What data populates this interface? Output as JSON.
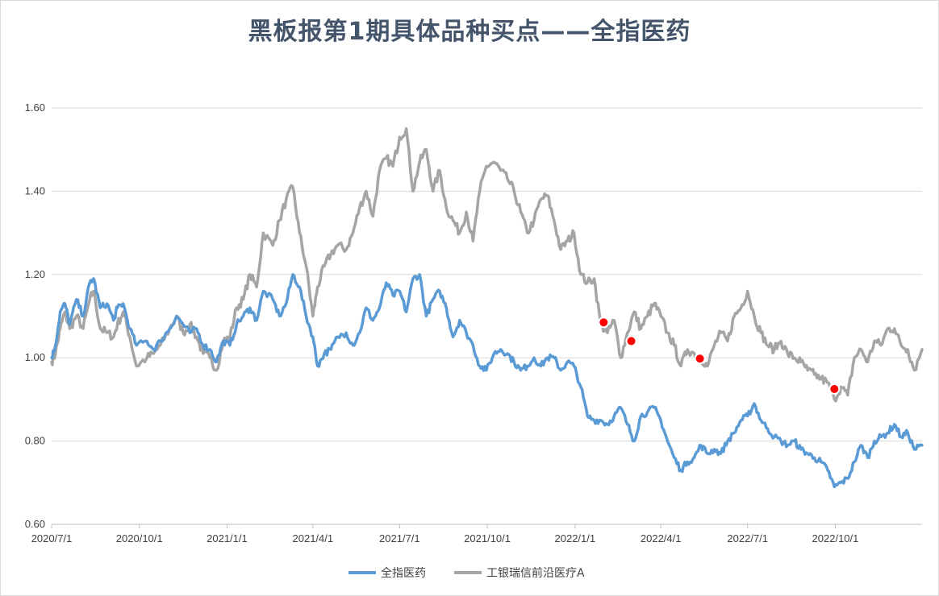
{
  "chart_data": {
    "type": "line",
    "title": "黑板报第1期具体品种买点——全指医药",
    "xlabel": "",
    "ylabel": "",
    "ylim": [
      0.6,
      1.6
    ],
    "yticks": [
      "0.60",
      "0.80",
      "1.00",
      "1.20",
      "1.40",
      "1.60"
    ],
    "xticks": [
      "2020/7/1",
      "2020/10/1",
      "2021/1/1",
      "2021/4/1",
      "2021/7/1",
      "2021/10/1",
      "2022/1/1",
      "2022/4/1",
      "2022/7/1",
      "2022/10/1"
    ],
    "xrange": [
      "2020-07-01",
      "2022-12-31"
    ],
    "grid": true,
    "legend_position": "bottom",
    "colors": {
      "series0": "#5b9bd5",
      "series1": "#a5a5a5",
      "markers": "#ff0000",
      "grid": "#d9d9d9",
      "title": "#44546a"
    },
    "series": [
      {
        "name": "全指医药",
        "points": [
          [
            "2020-07-01",
            1.0
          ],
          [
            "2020-07-05",
            1.03
          ],
          [
            "2020-07-10",
            1.11
          ],
          [
            "2020-07-15",
            1.13
          ],
          [
            "2020-07-20",
            1.08
          ],
          [
            "2020-07-27",
            1.14
          ],
          [
            "2020-08-03",
            1.1
          ],
          [
            "2020-08-10",
            1.18
          ],
          [
            "2020-08-14",
            1.19
          ],
          [
            "2020-08-21",
            1.12
          ],
          [
            "2020-08-28",
            1.13
          ],
          [
            "2020-09-04",
            1.09
          ],
          [
            "2020-09-08",
            1.12
          ],
          [
            "2020-09-14",
            1.13
          ],
          [
            "2020-09-21",
            1.07
          ],
          [
            "2020-09-28",
            1.03
          ],
          [
            "2020-10-09",
            1.04
          ],
          [
            "2020-10-16",
            1.02
          ],
          [
            "2020-10-23",
            1.04
          ],
          [
            "2020-11-02",
            1.07
          ],
          [
            "2020-11-09",
            1.1
          ],
          [
            "2020-11-16",
            1.08
          ],
          [
            "2020-11-23",
            1.06
          ],
          [
            "2020-11-30",
            1.07
          ],
          [
            "2020-12-07",
            1.03
          ],
          [
            "2020-12-14",
            1.02
          ],
          [
            "2020-12-21",
            0.99
          ],
          [
            "2020-12-28",
            1.04
          ],
          [
            "2021-01-04",
            1.03
          ],
          [
            "2021-01-11",
            1.08
          ],
          [
            "2021-01-18",
            1.1
          ],
          [
            "2021-01-25",
            1.12
          ],
          [
            "2021-02-01",
            1.09
          ],
          [
            "2021-02-08",
            1.16
          ],
          [
            "2021-02-18",
            1.14
          ],
          [
            "2021-02-25",
            1.1
          ],
          [
            "2021-03-04",
            1.13
          ],
          [
            "2021-03-11",
            1.2
          ],
          [
            "2021-03-18",
            1.17
          ],
          [
            "2021-03-25",
            1.1
          ],
          [
            "2021-04-01",
            1.05
          ],
          [
            "2021-04-06",
            0.98
          ],
          [
            "2021-04-13",
            1.01
          ],
          [
            "2021-04-20",
            1.02
          ],
          [
            "2021-04-27",
            1.05
          ],
          [
            "2021-05-06",
            1.06
          ],
          [
            "2021-05-13",
            1.03
          ],
          [
            "2021-05-20",
            1.06
          ],
          [
            "2021-05-27",
            1.12
          ],
          [
            "2021-06-03",
            1.09
          ],
          [
            "2021-06-10",
            1.12
          ],
          [
            "2021-06-17",
            1.18
          ],
          [
            "2021-06-24",
            1.15
          ],
          [
            "2021-07-01",
            1.16
          ],
          [
            "2021-07-08",
            1.11
          ],
          [
            "2021-07-15",
            1.19
          ],
          [
            "2021-07-22",
            1.2
          ],
          [
            "2021-07-29",
            1.1
          ],
          [
            "2021-08-05",
            1.14
          ],
          [
            "2021-08-12",
            1.16
          ],
          [
            "2021-08-19",
            1.12
          ],
          [
            "2021-08-26",
            1.05
          ],
          [
            "2021-09-02",
            1.09
          ],
          [
            "2021-09-09",
            1.06
          ],
          [
            "2021-09-16",
            1.03
          ],
          [
            "2021-09-23",
            0.98
          ],
          [
            "2021-09-30",
            0.97
          ],
          [
            "2021-10-08",
            1.01
          ],
          [
            "2021-10-15",
            1.02
          ],
          [
            "2021-10-22",
            1.01
          ],
          [
            "2021-10-29",
            0.99
          ],
          [
            "2021-11-05",
            0.97
          ],
          [
            "2021-11-12",
            0.98
          ],
          [
            "2021-11-19",
            1.0
          ],
          [
            "2021-11-26",
            0.98
          ],
          [
            "2021-12-03",
            1.0
          ],
          [
            "2021-12-10",
            1.0
          ],
          [
            "2021-12-17",
            0.97
          ],
          [
            "2021-12-24",
            0.99
          ],
          [
            "2021-12-31",
            0.98
          ],
          [
            "2022-01-07",
            0.93
          ],
          [
            "2022-01-14",
            0.86
          ],
          [
            "2022-01-21",
            0.85
          ],
          [
            "2022-01-28",
            0.85
          ],
          [
            "2022-02-04",
            0.84
          ],
          [
            "2022-02-11",
            0.86
          ],
          [
            "2022-02-18",
            0.88
          ],
          [
            "2022-02-25",
            0.84
          ],
          [
            "2022-03-04",
            0.8
          ],
          [
            "2022-03-11",
            0.86
          ],
          [
            "2022-03-18",
            0.87
          ],
          [
            "2022-03-25",
            0.88
          ],
          [
            "2022-04-01",
            0.85
          ],
          [
            "2022-04-08",
            0.8
          ],
          [
            "2022-04-15",
            0.76
          ],
          [
            "2022-04-22",
            0.73
          ],
          [
            "2022-04-29",
            0.75
          ],
          [
            "2022-05-06",
            0.76
          ],
          [
            "2022-05-13",
            0.79
          ],
          [
            "2022-05-20",
            0.77
          ],
          [
            "2022-05-27",
            0.78
          ],
          [
            "2022-06-03",
            0.77
          ],
          [
            "2022-06-10",
            0.8
          ],
          [
            "2022-06-17",
            0.82
          ],
          [
            "2022-06-24",
            0.85
          ],
          [
            "2022-07-01",
            0.86
          ],
          [
            "2022-07-08",
            0.89
          ],
          [
            "2022-07-15",
            0.85
          ],
          [
            "2022-07-22",
            0.83
          ],
          [
            "2022-07-29",
            0.81
          ],
          [
            "2022-08-05",
            0.8
          ],
          [
            "2022-08-12",
            0.79
          ],
          [
            "2022-08-19",
            0.8
          ],
          [
            "2022-08-26",
            0.78
          ],
          [
            "2022-09-02",
            0.77
          ],
          [
            "2022-09-09",
            0.76
          ],
          [
            "2022-09-16",
            0.75
          ],
          [
            "2022-09-23",
            0.73
          ],
          [
            "2022-09-30",
            0.69
          ],
          [
            "2022-10-07",
            0.7
          ],
          [
            "2022-10-14",
            0.71
          ],
          [
            "2022-10-21",
            0.75
          ],
          [
            "2022-10-28",
            0.79
          ],
          [
            "2022-11-04",
            0.76
          ],
          [
            "2022-11-11",
            0.8
          ],
          [
            "2022-11-18",
            0.81
          ],
          [
            "2022-11-25",
            0.82
          ],
          [
            "2022-12-02",
            0.84
          ],
          [
            "2022-12-09",
            0.81
          ],
          [
            "2022-12-16",
            0.82
          ],
          [
            "2022-12-23",
            0.78
          ],
          [
            "2022-12-31",
            0.79
          ]
        ]
      },
      {
        "name": "工银瑞信前沿医疗A",
        "points": [
          [
            "2020-07-01",
            0.99
          ],
          [
            "2020-07-05",
            1.01
          ],
          [
            "2020-07-10",
            1.07
          ],
          [
            "2020-07-15",
            1.11
          ],
          [
            "2020-07-20",
            1.07
          ],
          [
            "2020-07-27",
            1.1
          ],
          [
            "2020-08-03",
            1.07
          ],
          [
            "2020-08-10",
            1.14
          ],
          [
            "2020-08-14",
            1.16
          ],
          [
            "2020-08-21",
            1.07
          ],
          [
            "2020-08-28",
            1.06
          ],
          [
            "2020-09-04",
            1.05
          ],
          [
            "2020-09-08",
            1.08
          ],
          [
            "2020-09-14",
            1.11
          ],
          [
            "2020-09-21",
            1.05
          ],
          [
            "2020-09-28",
            0.98
          ],
          [
            "2020-10-09",
            1.0
          ],
          [
            "2020-10-16",
            1.01
          ],
          [
            "2020-10-23",
            1.03
          ],
          [
            "2020-11-02",
            1.07
          ],
          [
            "2020-11-09",
            1.1
          ],
          [
            "2020-11-16",
            1.06
          ],
          [
            "2020-11-23",
            1.08
          ],
          [
            "2020-11-30",
            1.05
          ],
          [
            "2020-12-07",
            1.01
          ],
          [
            "2020-12-14",
            1.0
          ],
          [
            "2020-12-21",
            0.97
          ],
          [
            "2020-12-28",
            1.04
          ],
          [
            "2021-01-04",
            1.05
          ],
          [
            "2021-01-11",
            1.12
          ],
          [
            "2021-01-18",
            1.14
          ],
          [
            "2021-01-25",
            1.2
          ],
          [
            "2021-02-01",
            1.17
          ],
          [
            "2021-02-08",
            1.3
          ],
          [
            "2021-02-18",
            1.27
          ],
          [
            "2021-02-25",
            1.33
          ],
          [
            "2021-03-04",
            1.38
          ],
          [
            "2021-03-11",
            1.41
          ],
          [
            "2021-03-18",
            1.3
          ],
          [
            "2021-03-25",
            1.22
          ],
          [
            "2021-04-01",
            1.1
          ],
          [
            "2021-04-06",
            1.17
          ],
          [
            "2021-04-13",
            1.22
          ],
          [
            "2021-04-20",
            1.25
          ],
          [
            "2021-04-27",
            1.27
          ],
          [
            "2021-05-06",
            1.26
          ],
          [
            "2021-05-13",
            1.3
          ],
          [
            "2021-05-20",
            1.36
          ],
          [
            "2021-05-27",
            1.4
          ],
          [
            "2021-06-03",
            1.34
          ],
          [
            "2021-06-10",
            1.45
          ],
          [
            "2021-06-17",
            1.48
          ],
          [
            "2021-06-24",
            1.46
          ],
          [
            "2021-07-01",
            1.53
          ],
          [
            "2021-07-08",
            1.55
          ],
          [
            "2021-07-15",
            1.4
          ],
          [
            "2021-07-22",
            1.47
          ],
          [
            "2021-07-29",
            1.5
          ],
          [
            "2021-08-05",
            1.4
          ],
          [
            "2021-08-12",
            1.45
          ],
          [
            "2021-08-19",
            1.36
          ],
          [
            "2021-08-26",
            1.33
          ],
          [
            "2021-09-02",
            1.3
          ],
          [
            "2021-09-09",
            1.35
          ],
          [
            "2021-09-16",
            1.28
          ],
          [
            "2021-09-23",
            1.4
          ],
          [
            "2021-09-30",
            1.46
          ],
          [
            "2021-10-08",
            1.47
          ],
          [
            "2021-10-15",
            1.45
          ],
          [
            "2021-10-22",
            1.43
          ],
          [
            "2021-10-29",
            1.4
          ],
          [
            "2021-11-05",
            1.35
          ],
          [
            "2021-11-12",
            1.3
          ],
          [
            "2021-11-19",
            1.33
          ],
          [
            "2021-11-26",
            1.38
          ],
          [
            "2021-12-03",
            1.39
          ],
          [
            "2021-12-10",
            1.33
          ],
          [
            "2021-12-17",
            1.26
          ],
          [
            "2021-12-24",
            1.28
          ],
          [
            "2021-12-31",
            1.3
          ],
          [
            "2022-01-07",
            1.2
          ],
          [
            "2022-01-14",
            1.18
          ],
          [
            "2022-01-21",
            1.19
          ],
          [
            "2022-01-28",
            1.08
          ],
          [
            "2022-02-04",
            1.06
          ],
          [
            "2022-02-11",
            1.09
          ],
          [
            "2022-02-18",
            1.0
          ],
          [
            "2022-02-25",
            1.06
          ],
          [
            "2022-03-04",
            1.11
          ],
          [
            "2022-03-11",
            1.07
          ],
          [
            "2022-03-18",
            1.1
          ],
          [
            "2022-03-25",
            1.13
          ],
          [
            "2022-04-01",
            1.1
          ],
          [
            "2022-04-08",
            1.06
          ],
          [
            "2022-04-15",
            1.03
          ],
          [
            "2022-04-22",
            0.98
          ],
          [
            "2022-04-29",
            1.02
          ],
          [
            "2022-05-06",
            1.01
          ],
          [
            "2022-05-13",
            1.0
          ],
          [
            "2022-05-20",
            0.98
          ],
          [
            "2022-05-27",
            1.03
          ],
          [
            "2022-06-03",
            1.06
          ],
          [
            "2022-06-10",
            1.04
          ],
          [
            "2022-06-17",
            1.1
          ],
          [
            "2022-06-24",
            1.12
          ],
          [
            "2022-07-01",
            1.16
          ],
          [
            "2022-07-08",
            1.1
          ],
          [
            "2022-07-15",
            1.06
          ],
          [
            "2022-07-22",
            1.03
          ],
          [
            "2022-07-29",
            1.02
          ],
          [
            "2022-08-05",
            1.04
          ],
          [
            "2022-08-12",
            1.01
          ],
          [
            "2022-08-19",
            1.0
          ],
          [
            "2022-08-26",
            0.99
          ],
          [
            "2022-09-02",
            0.97
          ],
          [
            "2022-09-09",
            0.96
          ],
          [
            "2022-09-16",
            0.95
          ],
          [
            "2022-09-23",
            0.94
          ],
          [
            "2022-09-30",
            0.9
          ],
          [
            "2022-10-07",
            0.93
          ],
          [
            "2022-10-14",
            0.91
          ],
          [
            "2022-10-21",
            1.0
          ],
          [
            "2022-10-28",
            1.02
          ],
          [
            "2022-11-04",
            0.99
          ],
          [
            "2022-11-11",
            1.04
          ],
          [
            "2022-11-18",
            1.03
          ],
          [
            "2022-11-25",
            1.07
          ],
          [
            "2022-12-02",
            1.07
          ],
          [
            "2022-12-09",
            1.03
          ],
          [
            "2022-12-16",
            1.02
          ],
          [
            "2022-12-23",
            0.97
          ],
          [
            "2022-12-31",
            1.02
          ]
        ]
      }
    ],
    "markers": [
      [
        "2022-01-31",
        1.085
      ],
      [
        "2022-03-01",
        1.04
      ],
      [
        "2022-05-12",
        0.998
      ],
      [
        "2022-09-30",
        0.925
      ]
    ]
  }
}
